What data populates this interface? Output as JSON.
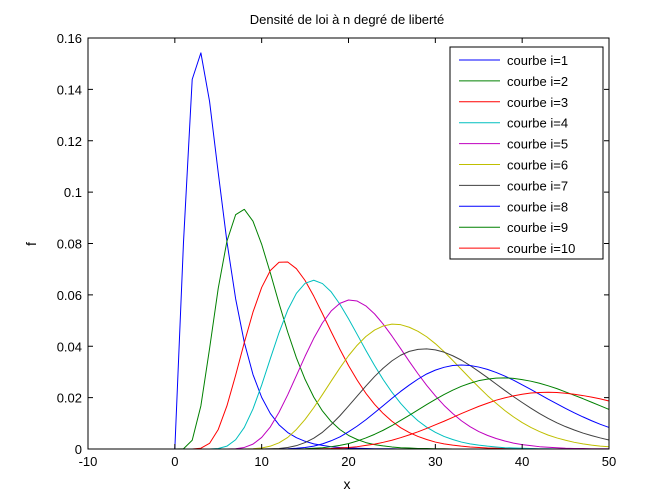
{
  "chart_data": {
    "type": "line",
    "title": "Densité de loi à n degré de liberté",
    "xlabel": "x",
    "ylabel": "f",
    "xlim": [
      -10,
      50
    ],
    "ylim": [
      0,
      0.16
    ],
    "xticks": [
      "-10",
      "0",
      "10",
      "20",
      "30",
      "40",
      "50"
    ],
    "yticks": [
      "0",
      "0.02",
      "0.04",
      "0.06",
      "0.08",
      "0.1",
      "0.12",
      "0.14",
      "0.16"
    ],
    "grid": false,
    "legend_position": "top-right",
    "x": [
      -10,
      -9,
      -8,
      -7,
      -6,
      -5,
      -4,
      -3,
      -2,
      -1,
      0,
      1,
      2,
      3,
      4,
      5,
      6,
      7,
      8,
      9,
      10,
      11,
      12,
      13,
      14,
      15,
      16,
      17,
      18,
      19,
      20,
      21,
      22,
      23,
      24,
      25,
      26,
      27,
      28,
      29,
      30,
      31,
      32,
      33,
      34,
      35,
      36,
      37,
      38,
      39,
      40,
      41,
      42,
      43,
      44,
      45,
      46,
      47,
      48,
      49,
      50
    ],
    "series": [
      {
        "name": "courbe i=1",
        "color": "#0000ff",
        "values": [
          0,
          0,
          0,
          0,
          0,
          0,
          0,
          0,
          0,
          0,
          0,
          0.0807,
          0.1439,
          0.1542,
          0.1353,
          0.1075,
          0.0807,
          0.0585,
          0.0415,
          0.029,
          0.0201,
          0.0138,
          0.0094,
          0.0064,
          0.0044,
          0.003,
          0.002,
          0.0014,
          0.0009,
          0.0006,
          0.0004,
          0.0003,
          0.0002,
          0.0001,
          0.0001,
          0.0001,
          0,
          0,
          0,
          0,
          0,
          0,
          0,
          0,
          0,
          0,
          0,
          0,
          0,
          0,
          0,
          0,
          0,
          0,
          0,
          0,
          0,
          0,
          0,
          0,
          0
        ]
      },
      {
        "name": "courbe i=2",
        "color": "#008000",
        "values": [
          0,
          0,
          0,
          0,
          0,
          0,
          0,
          0,
          0,
          0,
          0,
          0.0001,
          0.0034,
          0.0168,
          0.0391,
          0.0626,
          0.0809,
          0.0912,
          0.0933,
          0.0887,
          0.0797,
          0.0685,
          0.0567,
          0.0455,
          0.0355,
          0.0271,
          0.0202,
          0.0148,
          0.0107,
          0.0076,
          0.0053,
          0.0037,
          0.0025,
          0.0017,
          0.0012,
          0.0008,
          0.0005,
          0.0004,
          0.0002,
          0.0002,
          0.0001,
          0.0001,
          0,
          0,
          0,
          0,
          0,
          0,
          0,
          0,
          0,
          0,
          0,
          0,
          0,
          0,
          0,
          0,
          0,
          0,
          0
        ]
      },
      {
        "name": "courbe i=3",
        "color": "#ff0000",
        "values": [
          0,
          0,
          0,
          0,
          0,
          0,
          0,
          0,
          0,
          0,
          0,
          0,
          0,
          0.0003,
          0.0022,
          0.0076,
          0.0168,
          0.0287,
          0.0414,
          0.0533,
          0.0629,
          0.0695,
          0.0727,
          0.0728,
          0.0702,
          0.0656,
          0.0595,
          0.0527,
          0.0457,
          0.0389,
          0.0325,
          0.0268,
          0.0217,
          0.0174,
          0.0138,
          0.0108,
          0.0083,
          0.0064,
          0.0049,
          0.0037,
          0.0027,
          0.002,
          0.0015,
          0.0011,
          0.0008,
          0.0006,
          0.0004,
          0.0003,
          0.0002,
          0.0001,
          0.0001,
          0.0001,
          0,
          0,
          0,
          0,
          0,
          0,
          0,
          0,
          0
        ]
      },
      {
        "name": "courbe i=4",
        "color": "#00bfbf",
        "values": [
          0,
          0,
          0,
          0,
          0,
          0,
          0,
          0,
          0,
          0,
          0,
          0,
          0,
          0,
          0,
          0.0002,
          0.0011,
          0.0036,
          0.0084,
          0.0156,
          0.0249,
          0.0352,
          0.0453,
          0.0541,
          0.0606,
          0.0645,
          0.0657,
          0.0644,
          0.0612,
          0.0564,
          0.0507,
          0.0446,
          0.0384,
          0.0325,
          0.027,
          0.0221,
          0.0178,
          0.0141,
          0.011,
          0.0085,
          0.0065,
          0.0049,
          0.0037,
          0.0027,
          0.002,
          0.0015,
          0.0011,
          0.0008,
          0.0005,
          0.0004,
          0.0003,
          0.0002,
          0.0001,
          0.0001,
          0,
          0,
          0,
          0,
          0,
          0,
          0
        ]
      },
      {
        "name": "courbe i=5",
        "color": "#bf00bf",
        "values": [
          0,
          0,
          0,
          0,
          0,
          0,
          0,
          0,
          0,
          0,
          0,
          0,
          0,
          0,
          0,
          0,
          0,
          0.0001,
          0.0006,
          0.0019,
          0.0045,
          0.0086,
          0.0143,
          0.0211,
          0.0286,
          0.0361,
          0.0431,
          0.0491,
          0.0537,
          0.0567,
          0.058,
          0.0576,
          0.0557,
          0.0526,
          0.0486,
          0.044,
          0.0391,
          0.0341,
          0.0293,
          0.0248,
          0.0207,
          0.017,
          0.0138,
          0.011,
          0.0087,
          0.0068,
          0.0053,
          0.0041,
          0.0031,
          0.0023,
          0.0017,
          0.0013,
          0.0009,
          0.0007,
          0.0005,
          0.0003,
          0.0002,
          0.0002,
          0.0001,
          0.0001,
          0.0001
        ]
      },
      {
        "name": "courbe i=6",
        "color": "#bfbf00",
        "values": [
          0,
          0,
          0,
          0,
          0,
          0,
          0,
          0,
          0,
          0,
          0,
          0,
          0,
          0,
          0,
          0,
          0,
          0,
          0,
          0.0001,
          0.0004,
          0.0011,
          0.0024,
          0.0045,
          0.0076,
          0.0115,
          0.0161,
          0.0212,
          0.0264,
          0.0315,
          0.0363,
          0.0404,
          0.0438,
          0.0463,
          0.0479,
          0.0486,
          0.0484,
          0.0474,
          0.0458,
          0.0437,
          0.041,
          0.0379,
          0.0345,
          0.031,
          0.0275,
          0.0241,
          0.0208,
          0.0178,
          0.015,
          0.0125,
          0.0103,
          0.0084,
          0.0068,
          0.0054,
          0.0043,
          0.0034,
          0.0026,
          0.002,
          0.0015,
          0.0011,
          0.0009
        ]
      },
      {
        "name": "courbe i=7",
        "color": "#404040",
        "values": [
          0,
          0,
          0,
          0,
          0,
          0,
          0,
          0,
          0,
          0,
          0,
          0,
          0,
          0,
          0,
          0,
          0,
          0,
          0,
          0,
          0,
          0.0001,
          0.0002,
          0.0006,
          0.0013,
          0.0025,
          0.0042,
          0.0065,
          0.0095,
          0.0129,
          0.0167,
          0.0206,
          0.0245,
          0.0282,
          0.0315,
          0.0343,
          0.0365,
          0.038,
          0.0388,
          0.039,
          0.0386,
          0.0377,
          0.0363,
          0.0346,
          0.0325,
          0.0302,
          0.0278,
          0.0253,
          0.0228,
          0.0204,
          0.0181,
          0.0159,
          0.0138,
          0.0119,
          0.0102,
          0.0087,
          0.0074,
          0.0062,
          0.0052,
          0.0043,
          0.0035
        ]
      },
      {
        "name": "courbe i=8",
        "color": "#0000ff",
        "values": [
          0,
          0,
          0,
          0,
          0,
          0,
          0,
          0,
          0,
          0,
          0,
          0,
          0,
          0,
          0,
          0,
          0,
          0,
          0,
          0,
          0,
          0,
          0,
          0.0001,
          0.0003,
          0.0006,
          0.0011,
          0.002,
          0.0032,
          0.0047,
          0.0067,
          0.0089,
          0.0114,
          0.0141,
          0.0169,
          0.0197,
          0.0224,
          0.0249,
          0.0272,
          0.0292,
          0.0307,
          0.0318,
          0.0325,
          0.0327,
          0.0325,
          0.0319,
          0.031,
          0.0298,
          0.0284,
          0.0268,
          0.025,
          0.0232,
          0.0213,
          0.0194,
          0.0176,
          0.0158,
          0.0141,
          0.0125,
          0.011,
          0.0096,
          0.0084
        ]
      },
      {
        "name": "courbe i=9",
        "color": "#008000",
        "values": [
          0,
          0,
          0,
          0,
          0,
          0,
          0,
          0,
          0,
          0,
          0,
          0,
          0,
          0,
          0,
          0,
          0,
          0,
          0,
          0,
          0,
          0,
          0,
          0,
          0,
          0.0001,
          0.0003,
          0.0005,
          0.0009,
          0.0014,
          0.0021,
          0.0031,
          0.0043,
          0.0057,
          0.0073,
          0.0091,
          0.0111,
          0.0131,
          0.0152,
          0.0173,
          0.0193,
          0.0212,
          0.0229,
          0.0244,
          0.0256,
          0.0266,
          0.0272,
          0.0276,
          0.0277,
          0.0275,
          0.027,
          0.0264,
          0.0256,
          0.0246,
          0.0235,
          0.0222,
          0.0209,
          0.0196,
          0.0182,
          0.0168,
          0.0154
        ]
      },
      {
        "name": "courbe i=10",
        "color": "#ff0000",
        "values": [
          0,
          0,
          0,
          0,
          0,
          0,
          0,
          0,
          0,
          0,
          0,
          0,
          0,
          0,
          0,
          0,
          0,
          0,
          0,
          0,
          0,
          0,
          0,
          0,
          0,
          0,
          0,
          0.0001,
          0.0002,
          0.0004,
          0.0006,
          0.0009,
          0.0014,
          0.0019,
          0.0026,
          0.0034,
          0.0044,
          0.0055,
          0.0067,
          0.008,
          0.0094,
          0.0108,
          0.0123,
          0.0138,
          0.0152,
          0.0166,
          0.0178,
          0.019,
          0.0199,
          0.0207,
          0.0213,
          0.0218,
          0.022,
          0.0221,
          0.022,
          0.0217,
          0.0213,
          0.0208,
          0.0202,
          0.0195,
          0.0187
        ]
      }
    ]
  }
}
